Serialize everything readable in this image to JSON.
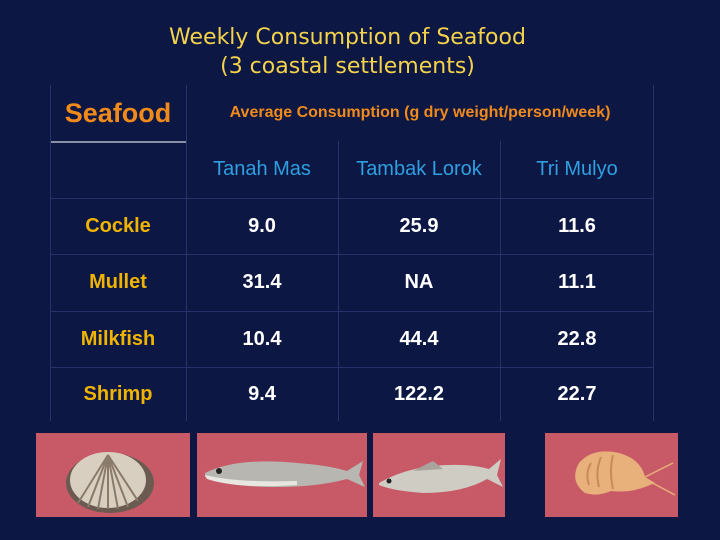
{
  "slide": {
    "title_line1": "Weekly Consumption of Seafood",
    "title_line2": "(3 coastal settlements)"
  },
  "table": {
    "header": {
      "seafood": "Seafood",
      "measure": "Average Consumption (g dry weight/person/week)"
    },
    "sites": [
      "Tanah Mas",
      "Tambak Lorok",
      "Tri Mulyo"
    ],
    "rows": [
      {
        "name": "Cockle",
        "values": [
          "9.0",
          "25.9",
          "11.6"
        ]
      },
      {
        "name": "Mullet",
        "values": [
          "31.4",
          "NA",
          "11.1"
        ]
      },
      {
        "name": "Milkfish",
        "values": [
          "10.4",
          "44.4",
          "22.8"
        ]
      },
      {
        "name": "Shrimp",
        "values": [
          "9.4",
          "122.2",
          "22.7"
        ]
      }
    ]
  },
  "photos": {
    "items": [
      "cockle-photo",
      "mullet-photo",
      "milkfish-photo",
      "shrimp-photo"
    ],
    "background_color": "#c85a68"
  }
}
